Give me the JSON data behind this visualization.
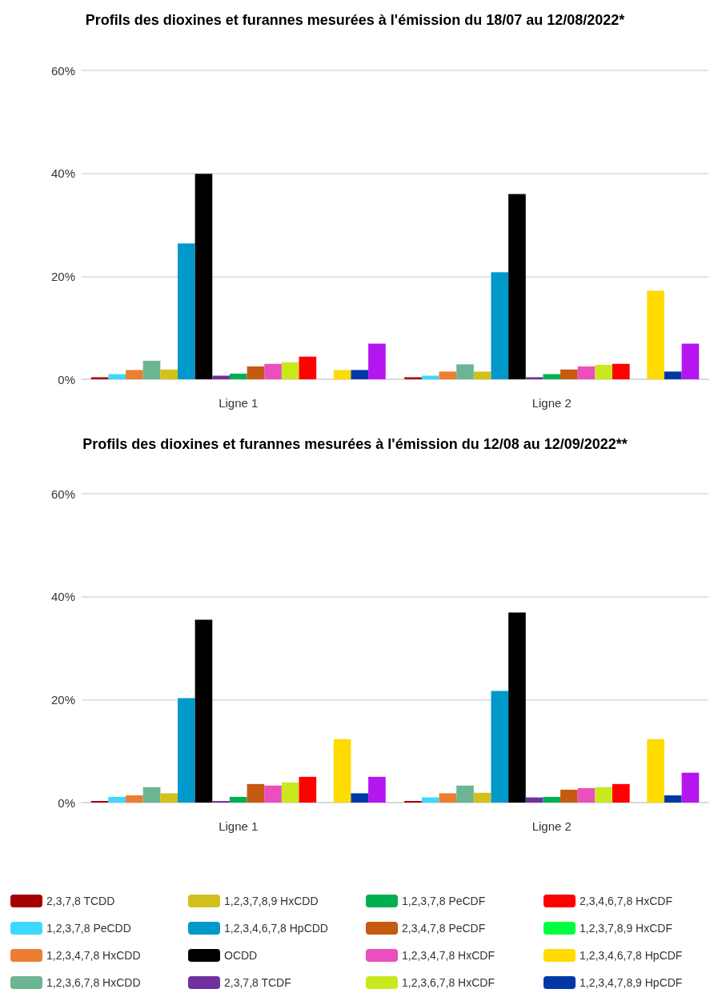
{
  "chart_data": [
    {
      "type": "bar",
      "title": "Profils des dioxines et furannes mesurées à l'émission du 18/07 au 12/08/2022*",
      "categories": [
        "Ligne 1",
        "Ligne 2"
      ],
      "ylim": [
        0,
        60
      ],
      "yticks": [
        {
          "value": 0,
          "label": "0%"
        },
        {
          "value": 20,
          "label": "20%"
        },
        {
          "value": 40,
          "label": "40%"
        },
        {
          "value": 60,
          "label": "60%"
        }
      ],
      "grid": "y",
      "series": [
        {
          "color": "#a50000",
          "values": [
            0.4,
            0.4
          ]
        },
        {
          "color": "#3dd8ff",
          "values": [
            1.0,
            0.7
          ]
        },
        {
          "color": "#ed7d31",
          "values": [
            1.8,
            1.5
          ]
        },
        {
          "color": "#6bb592",
          "values": [
            3.6,
            2.9
          ]
        },
        {
          "color": "#d4c01c",
          "values": [
            1.9,
            1.5
          ]
        },
        {
          "color": "#0099cc",
          "values": [
            26.4,
            20.8
          ]
        },
        {
          "color": "#000000",
          "values": [
            39.9,
            36.0
          ]
        },
        {
          "color": "#7030a0",
          "values": [
            0.7,
            0.4
          ]
        },
        {
          "color": "#00b050",
          "values": [
            1.1,
            1.0
          ]
        },
        {
          "color": "#c55a11",
          "values": [
            2.5,
            1.9
          ]
        },
        {
          "color": "#ea4fbd",
          "values": [
            3.0,
            2.5
          ]
        },
        {
          "color": "#c9e81e",
          "values": [
            3.3,
            2.8
          ]
        },
        {
          "color": "#ff0000",
          "values": [
            4.4,
            3.0
          ]
        },
        {
          "color": "#00ff40",
          "values": [
            0,
            0
          ]
        },
        {
          "color": "#ffdb00",
          "values": [
            1.8,
            17.2
          ]
        },
        {
          "color": "#0039a6",
          "values": [
            1.8,
            1.5
          ]
        },
        {
          "color": "#b515ef",
          "values": [
            6.9,
            6.9
          ]
        }
      ]
    },
    {
      "type": "bar",
      "title": "Profils des dioxines et furannes mesurées à l'émission du 12/08 au 12/09/2022**",
      "categories": [
        "Ligne 1",
        "Ligne 2"
      ],
      "ylim": [
        0,
        60
      ],
      "yticks": [
        {
          "value": 0,
          "label": "0%"
        },
        {
          "value": 20,
          "label": "20%"
        },
        {
          "value": 40,
          "label": "40%"
        },
        {
          "value": 60,
          "label": "60%"
        }
      ],
      "grid": "y",
      "legend": "bottom",
      "series": [
        {
          "name": "2,3,7,8 TCDD",
          "color": "#a50000",
          "values": [
            0.3,
            0.3
          ]
        },
        {
          "name": "1,2,3,7,8 PeCDD",
          "color": "#3dd8ff",
          "values": [
            1.1,
            1.0
          ]
        },
        {
          "name": "1,2,3,4,7,8 HxCDD",
          "color": "#ed7d31",
          "values": [
            1.4,
            1.8
          ]
        },
        {
          "name": "1,2,3,6,7,8 HxCDD",
          "color": "#6bb592",
          "values": [
            3.0,
            3.3
          ]
        },
        {
          "name": "1,2,3,7,8,9 HxCDD",
          "color": "#d4c01c",
          "values": [
            1.8,
            1.9
          ]
        },
        {
          "name": "1,2,3,4,6,7,8 HpCDD",
          "color": "#0099cc",
          "values": [
            20.3,
            21.7
          ]
        },
        {
          "name": "OCDD",
          "color": "#000000",
          "values": [
            35.5,
            36.9
          ]
        },
        {
          "name": "2,3,7,8 TCDF",
          "color": "#7030a0",
          "values": [
            0.3,
            1.0
          ]
        },
        {
          "name": "1,2,3,7,8 PeCDF",
          "color": "#00b050",
          "values": [
            1.1,
            1.1
          ]
        },
        {
          "name": "2,3,4,7,8 PeCDF",
          "color": "#c55a11",
          "values": [
            3.6,
            2.5
          ]
        },
        {
          "name": "1,2,3,4,7,8 HxCDF",
          "color": "#ea4fbd",
          "values": [
            3.3,
            2.8
          ]
        },
        {
          "name": "1,2,3,6,7,8 HxCDF",
          "color": "#c9e81e",
          "values": [
            3.9,
            3.0
          ]
        },
        {
          "name": "2,3,4,6,7,8 HxCDF",
          "color": "#ff0000",
          "values": [
            5.0,
            3.6
          ]
        },
        {
          "name": "1,2,3,7,8,9 HxCDF",
          "color": "#00ff40",
          "values": [
            0,
            0
          ]
        },
        {
          "name": "1,2,3,4,6,7,8 HpCDF",
          "color": "#ffdb00",
          "values": [
            12.3,
            12.3
          ]
        },
        {
          "name": "1,2,3,4,7,8,9 HpCDF",
          "color": "#0039a6",
          "values": [
            1.8,
            1.4
          ]
        },
        {
          "color": "#b515ef",
          "values": [
            5.0,
            5.8
          ]
        }
      ]
    }
  ]
}
